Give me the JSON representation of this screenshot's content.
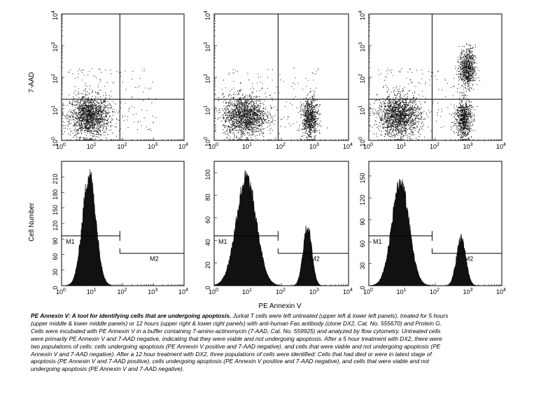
{
  "figure": {
    "dot_ylabel": "7-AAD",
    "hist_ylabel": "Cell Number",
    "xlabel": "PE Annexin V",
    "log_ticks": [
      "0",
      "1",
      "2",
      "3",
      "4"
    ],
    "marker_labels": [
      "M1",
      "M2"
    ]
  },
  "chart_data": [
    {
      "type": "scatter",
      "panel": "upper left",
      "xlabel": "",
      "ylabel": "7-AAD",
      "xscale": "log",
      "yscale": "log",
      "xlim": [
        1,
        10000
      ],
      "ylim": [
        1,
        10000
      ],
      "populations": [
        {
          "center": [
            8,
            6
          ],
          "spread": "dense"
        }
      ]
    },
    {
      "type": "scatter",
      "panel": "upper middle",
      "xlabel": "",
      "ylabel": "",
      "xscale": "log",
      "yscale": "log",
      "xlim": [
        1,
        10000
      ],
      "ylim": [
        1,
        10000
      ],
      "populations": [
        {
          "center": [
            8,
            6
          ],
          "spread": "dense"
        },
        {
          "center": [
            700,
            5
          ],
          "spread": "dense"
        }
      ]
    },
    {
      "type": "scatter",
      "panel": "upper right",
      "xlabel": "",
      "ylabel": "",
      "xscale": "log",
      "yscale": "log",
      "xlim": [
        1,
        10000
      ],
      "ylim": [
        1,
        10000
      ],
      "populations": [
        {
          "center": [
            8,
            6
          ],
          "spread": "dense"
        },
        {
          "center": [
            700,
            5
          ],
          "spread": "dense"
        },
        {
          "center": [
            900,
            200
          ],
          "spread": "dense"
        }
      ]
    },
    {
      "type": "area",
      "panel": "lower left",
      "xlabel": "",
      "ylabel": "Cell Number",
      "xscale": "log",
      "xlim": [
        1,
        10000
      ],
      "ylim": [
        0,
        240
      ],
      "yticks": [
        0,
        30,
        60,
        90,
        120,
        150,
        180,
        210
      ],
      "peaks": [
        {
          "x": 8,
          "height": 212,
          "width_decades": 0.22
        }
      ],
      "markers": [
        {
          "name": "M1",
          "range": [
            1,
            80
          ]
        },
        {
          "name": "M2",
          "range": [
            80,
            10000
          ]
        }
      ]
    },
    {
      "type": "area",
      "panel": "lower middle",
      "xlabel": "PE Annexin V",
      "ylabel": "",
      "xscale": "log",
      "xlim": [
        1,
        10000
      ],
      "ylim": [
        0,
        110
      ],
      "yticks": [
        0,
        20,
        40,
        60,
        80,
        100
      ],
      "peaks": [
        {
          "x": 9,
          "height": 94,
          "width_decades": 0.3
        },
        {
          "x": 600,
          "height": 52,
          "width_decades": 0.13
        }
      ],
      "markers": [
        {
          "name": "M1",
          "range": [
            1,
            80
          ]
        },
        {
          "name": "M2",
          "range": [
            80,
            10000
          ]
        }
      ]
    },
    {
      "type": "area",
      "panel": "lower right",
      "xlabel": "",
      "ylabel": "",
      "xscale": "log",
      "xlim": [
        1,
        10000
      ],
      "ylim": [
        0,
        170
      ],
      "yticks": [
        0,
        30,
        60,
        90,
        120,
        150
      ],
      "peaks": [
        {
          "x": 9,
          "height": 140,
          "width_decades": 0.26
        },
        {
          "x": 600,
          "height": 65,
          "width_decades": 0.14
        }
      ],
      "markers": [
        {
          "name": "M1",
          "range": [
            1,
            80
          ]
        },
        {
          "name": "M2",
          "range": [
            80,
            10000
          ]
        }
      ]
    }
  ],
  "caption": {
    "title": "PE Annexin V: A tool for identifying cells that are undergoing apoptosis.",
    "body": " Jurkat T cells were left untreated (upper left & lower left panels), treated for 5 hours (upper middle & lower middle panels) or 12 hours (upper right & lower right panels) with anti-human Fas antibody (clone DX2, Cat. No. 555670) and Protein G. Cells were incubated with PE Annexin V in a buffer containing 7-amino-actinomycin (7-AAD, Cat. No. 559925) and analyzed by flow cytometry. Untreated cells were primarily PE Annexin V and 7-AAD negative, indicating that they were viable and not undergoing apoptosis. After a 5 hour treatment with DX2, there were two populations of cells: cells undergoing apoptosis (PE Annexin V positive and 7-AAD negative), and cells that were viable and not undergoing apoptosis (PE Annexin V and 7-AAD negative). After a 12 hour treatment with DX2, three populations of cells were identified: Cells that had died or were in latest stage of apoptosis (PE Annexin V and 7-AAD positive), cells undergoing apoptosis (PE Annexin V positive and 7-AAD negative), and cells that were viable and not undergoing apoptosis (PE Annexin V and 7-AAD negative)."
  }
}
